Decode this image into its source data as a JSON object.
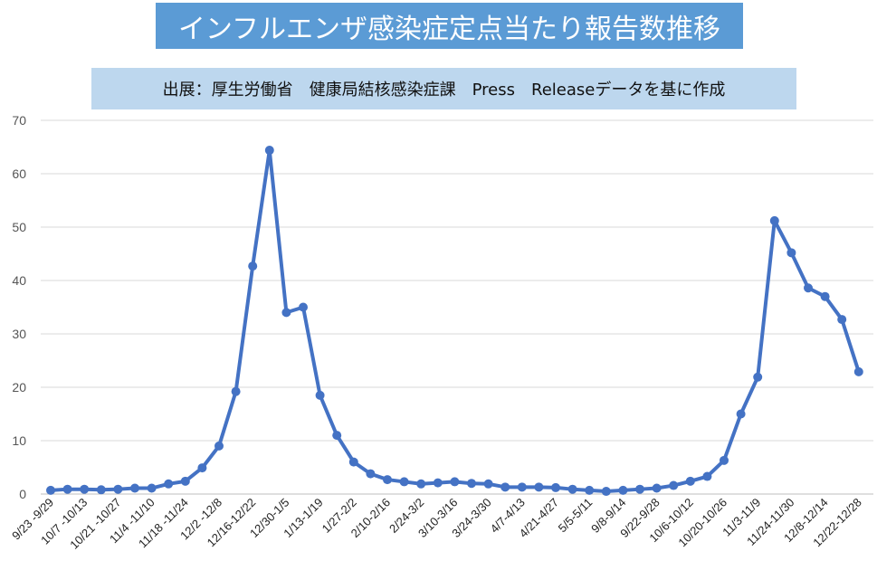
{
  "chart_data": {
    "type": "line",
    "title": "インフルエンザ感染症定点当たり報告数推移",
    "subtitle": "出展：厚生労働省　健康局結核感染症課　Press　Releaseデータを基に作成",
    "xlabel": "",
    "ylabel": "",
    "ylim": [
      0,
      70
    ],
    "yticks": [
      0,
      10,
      20,
      30,
      40,
      50,
      60,
      70
    ],
    "grid": true,
    "legend": "none",
    "color": "#4472c4",
    "tick_labels": [
      "9/23 -9/29",
      "10/7 -10/13",
      "10/21 -10/27",
      "11/4 -11/10",
      "11/18 -11/24",
      "12/2 -12/8",
      "12/16-12/22",
      "12/30-1/5",
      "1/13-1/19",
      "1/27-2/2",
      "2/10-2/16",
      "2/24-3/2",
      "3/10-3/16",
      "3/24-3/30",
      "4/7-4/13",
      "4/21-4/27",
      "5/5-5/11",
      "9/8-9/14",
      "9/22-9/28",
      "10/6-10/12",
      "10/20-10/26",
      "11/3-11/9",
      "11/24-11/30",
      "12/8-12/14",
      "12/22-12/28"
    ],
    "values": [
      0.7,
      0.9,
      0.9,
      0.8,
      0.9,
      1.1,
      1.1,
      1.9,
      2.4,
      4.9,
      9.0,
      19.2,
      42.7,
      64.4,
      34.0,
      35.0,
      18.5,
      11.0,
      6.0,
      3.8,
      2.7,
      2.3,
      1.9,
      2.1,
      2.3,
      2.0,
      1.9,
      1.3,
      1.3,
      1.3,
      1.2,
      0.9,
      0.7,
      0.5,
      0.7,
      0.9,
      1.1,
      1.6,
      2.4,
      3.3,
      6.3,
      15.0,
      21.9,
      51.2,
      45.2,
      38.6,
      37.0,
      32.7,
      22.9
    ]
  }
}
